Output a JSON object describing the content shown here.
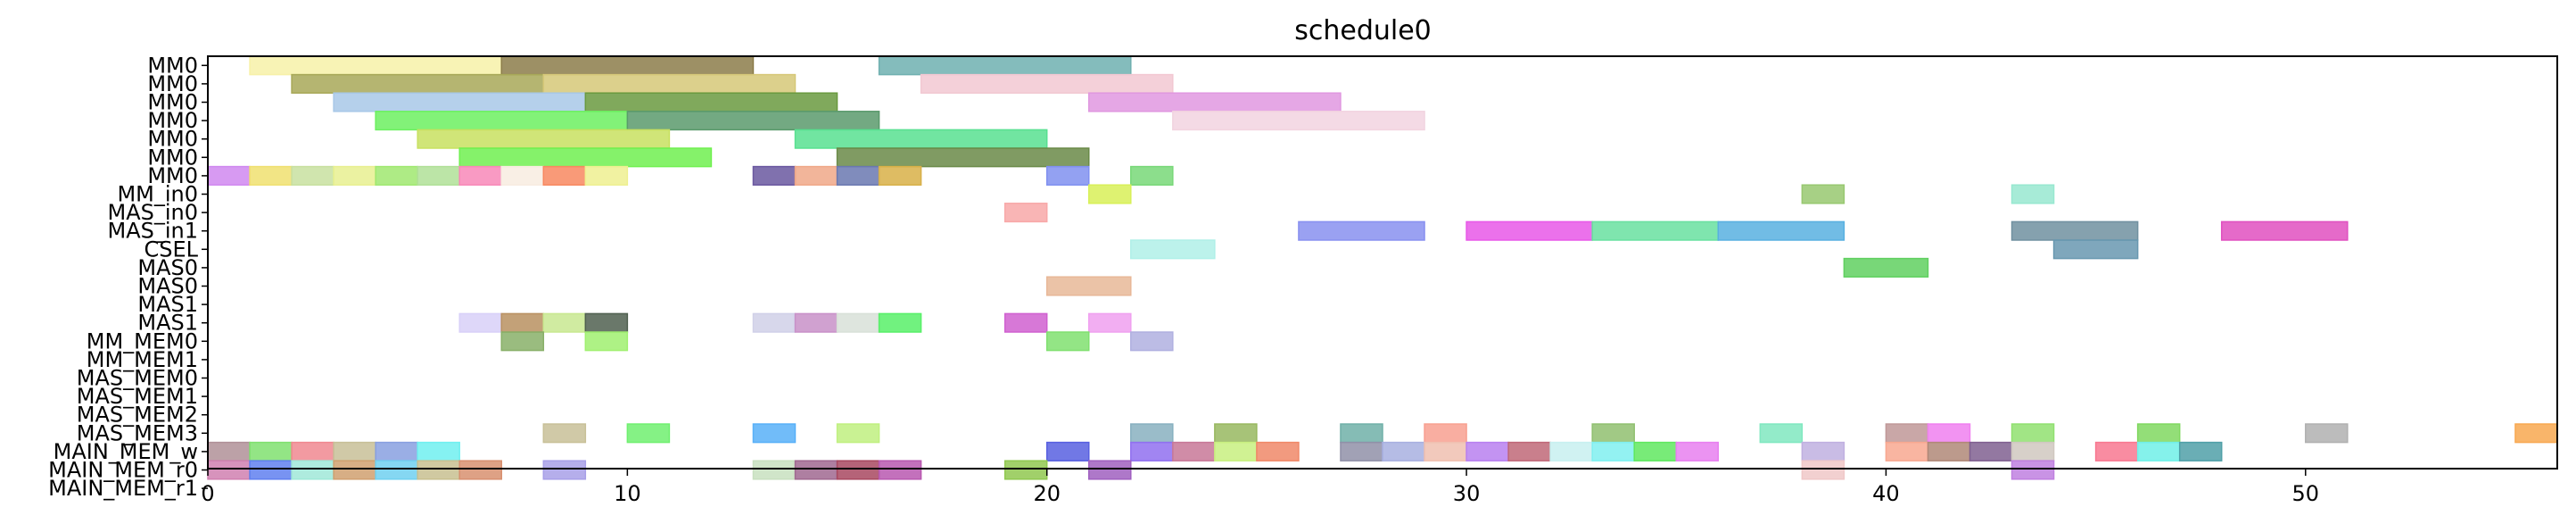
{
  "chart_data": {
    "type": "gantt",
    "title": "schedule0",
    "xlim": [
      0,
      56
    ],
    "x_ticks": [
      0,
      10,
      20,
      30,
      40,
      50
    ],
    "rows": [
      "MM0",
      "MM0",
      "MM0",
      "MM0",
      "MM0",
      "MM0",
      "MM0",
      "MM_in0",
      "MAS_in0",
      "MAS_in1",
      "CSEL",
      "MAS0",
      "MAS0",
      "MAS1",
      "MAS1",
      "MM_MEM0",
      "MM_MEM1",
      "MAS_MEM0",
      "MAS_MEM1",
      "MAS_MEM2",
      "MAS_MEM3",
      "MAIN_MEM_w",
      "MAIN_MEM_r0",
      "MAIN_MEM_r1"
    ],
    "bars": [
      {
        "row": 0,
        "start": 1,
        "end": 7,
        "color": "#f7f1a8"
      },
      {
        "row": 0,
        "start": 7,
        "end": 13,
        "color": "#8c7d4a"
      },
      {
        "row": 0,
        "start": 16,
        "end": 22,
        "color": "#6fb0b0"
      },
      {
        "row": 1,
        "start": 2,
        "end": 8,
        "color": "#a8a858"
      },
      {
        "row": 1,
        "start": 8,
        "end": 14,
        "color": "#d6c878"
      },
      {
        "row": 1,
        "start": 17,
        "end": 23,
        "color": "#f2c8d2"
      },
      {
        "row": 2,
        "start": 3,
        "end": 9,
        "color": "#a8c8e8"
      },
      {
        "row": 2,
        "start": 9,
        "end": 15,
        "color": "#6a9a40"
      },
      {
        "row": 2,
        "start": 21,
        "end": 27,
        "color": "#e098e0"
      },
      {
        "row": 3,
        "start": 4,
        "end": 10,
        "color": "#6cf060"
      },
      {
        "row": 3,
        "start": 10,
        "end": 16,
        "color": "#5a9a6c"
      },
      {
        "row": 3,
        "start": 23,
        "end": 29,
        "color": "#f2d4e0"
      },
      {
        "row": 4,
        "start": 5,
        "end": 11,
        "color": "#c8e060"
      },
      {
        "row": 4,
        "start": 14,
        "end": 20,
        "color": "#58e090"
      },
      {
        "row": 5,
        "start": 6,
        "end": 12,
        "color": "#70f050"
      },
      {
        "row": 5,
        "start": 15,
        "end": 21,
        "color": "#6a8a48"
      },
      {
        "row": 6,
        "start": 0,
        "end": 1,
        "color": "#d088f0"
      },
      {
        "row": 6,
        "start": 1,
        "end": 2,
        "color": "#f0e070"
      },
      {
        "row": 6,
        "start": 2,
        "end": 3,
        "color": "#c8e0a0"
      },
      {
        "row": 6,
        "start": 3,
        "end": 4,
        "color": "#e8f090"
      },
      {
        "row": 6,
        "start": 4,
        "end": 5,
        "color": "#a0e870"
      },
      {
        "row": 6,
        "start": 5,
        "end": 6,
        "color": "#b0e098"
      },
      {
        "row": 6,
        "start": 6,
        "end": 7,
        "color": "#f888b8"
      },
      {
        "row": 6,
        "start": 7,
        "end": 8,
        "color": "#f8ece0"
      },
      {
        "row": 6,
        "start": 8,
        "end": 9,
        "color": "#f88860"
      },
      {
        "row": 6,
        "start": 9,
        "end": 10,
        "color": "#eef090"
      },
      {
        "row": 6,
        "start": 13,
        "end": 14,
        "color": "#6a58a0"
      },
      {
        "row": 6,
        "start": 14,
        "end": 15,
        "color": "#f0a888"
      },
      {
        "row": 6,
        "start": 15,
        "end": 16,
        "color": "#6a78b0"
      },
      {
        "row": 6,
        "start": 16,
        "end": 17,
        "color": "#d8b048"
      },
      {
        "row": 6,
        "start": 20,
        "end": 21,
        "color": "#8090f0"
      },
      {
        "row": 6,
        "start": 22,
        "end": 23,
        "color": "#78d878"
      },
      {
        "row": 7,
        "start": 21,
        "end": 22,
        "color": "#d8f058"
      },
      {
        "row": 7,
        "start": 38,
        "end": 39,
        "color": "#98c870"
      },
      {
        "row": 7,
        "start": 43,
        "end": 44,
        "color": "#98e8d0"
      },
      {
        "row": 8,
        "start": 19,
        "end": 20,
        "color": "#f8a8a8"
      },
      {
        "row": 9,
        "start": 26,
        "end": 29,
        "color": "#8890f0"
      },
      {
        "row": 9,
        "start": 30,
        "end": 33,
        "color": "#e858e8"
      },
      {
        "row": 9,
        "start": 33,
        "end": 36,
        "color": "#68e0a0"
      },
      {
        "row": 9,
        "start": 36,
        "end": 39,
        "color": "#58b0e0"
      },
      {
        "row": 9,
        "start": 43,
        "end": 46,
        "color": "#7090a0"
      },
      {
        "row": 9,
        "start": 48,
        "end": 51,
        "color": "#e050c0"
      },
      {
        "row": 10,
        "start": 22,
        "end": 24,
        "color": "#b0f0e8"
      },
      {
        "row": 10,
        "start": 44,
        "end": 46,
        "color": "#6898b0"
      },
      {
        "row": 11,
        "start": 39,
        "end": 41,
        "color": "#60d060"
      },
      {
        "row": 12,
        "start": 20,
        "end": 22,
        "color": "#e8b898"
      },
      {
        "row": 14,
        "start": 6,
        "end": 7,
        "color": "#d8d0f8"
      },
      {
        "row": 14,
        "start": 7,
        "end": 8,
        "color": "#b89060"
      },
      {
        "row": 14,
        "start": 8,
        "end": 9,
        "color": "#c8e890"
      },
      {
        "row": 14,
        "start": 9,
        "end": 10,
        "color": "#506050"
      },
      {
        "row": 14,
        "start": 13,
        "end": 14,
        "color": "#d0d0e8"
      },
      {
        "row": 14,
        "start": 14,
        "end": 15,
        "color": "#c890c8"
      },
      {
        "row": 14,
        "start": 15,
        "end": 16,
        "color": "#d8e0d8"
      },
      {
        "row": 14,
        "start": 16,
        "end": 17,
        "color": "#58f068"
      },
      {
        "row": 14,
        "start": 19,
        "end": 20,
        "color": "#d060d0"
      },
      {
        "row": 14,
        "start": 21,
        "end": 22,
        "color": "#f0a0f0"
      },
      {
        "row": 15,
        "start": 7,
        "end": 8,
        "color": "#88b068"
      },
      {
        "row": 15,
        "start": 9,
        "end": 10,
        "color": "#a0f070"
      },
      {
        "row": 15,
        "start": 20,
        "end": 21,
        "color": "#80e070"
      },
      {
        "row": 15,
        "start": 22,
        "end": 23,
        "color": "#b0b0e0"
      },
      {
        "row": 20,
        "start": 8,
        "end": 9,
        "color": "#c8c098"
      },
      {
        "row": 20,
        "start": 10,
        "end": 11,
        "color": "#70f070"
      },
      {
        "row": 20,
        "start": 13,
        "end": 14,
        "color": "#58b0f8"
      },
      {
        "row": 20,
        "start": 15,
        "end": 16,
        "color": "#c0f080"
      },
      {
        "row": 20,
        "start": 22,
        "end": 23,
        "color": "#88b0c0"
      },
      {
        "row": 20,
        "start": 24,
        "end": 25,
        "color": "#98b860"
      },
      {
        "row": 20,
        "start": 27,
        "end": 28,
        "color": "#70b0a8"
      },
      {
        "row": 20,
        "start": 29,
        "end": 30,
        "color": "#f8a090"
      },
      {
        "row": 20,
        "start": 33,
        "end": 34,
        "color": "#90c070"
      },
      {
        "row": 20,
        "start": 37,
        "end": 38,
        "color": "#80e8c0"
      },
      {
        "row": 20,
        "start": 40,
        "end": 41,
        "color": "#c09898"
      },
      {
        "row": 20,
        "start": 41,
        "end": 42,
        "color": "#f080f0"
      },
      {
        "row": 20,
        "start": 43,
        "end": 44,
        "color": "#90e070"
      },
      {
        "row": 20,
        "start": 46,
        "end": 47,
        "color": "#80d860"
      },
      {
        "row": 20,
        "start": 50,
        "end": 51,
        "color": "#b0b0b0"
      },
      {
        "row": 20,
        "start": 55,
        "end": 56,
        "color": "#f8a850"
      },
      {
        "row": 21,
        "start": 0,
        "end": 1,
        "color": "#b09098"
      },
      {
        "row": 21,
        "start": 1,
        "end": 2,
        "color": "#80e070"
      },
      {
        "row": 21,
        "start": 2,
        "end": 3,
        "color": "#f08890"
      },
      {
        "row": 21,
        "start": 3,
        "end": 4,
        "color": "#c8c098"
      },
      {
        "row": 21,
        "start": 4,
        "end": 5,
        "color": "#88a0e0"
      },
      {
        "row": 21,
        "start": 5,
        "end": 6,
        "color": "#70f0f0"
      },
      {
        "row": 21,
        "start": 20,
        "end": 21,
        "color": "#5860e0"
      },
      {
        "row": 21,
        "start": 22,
        "end": 23,
        "color": "#9070f0"
      },
      {
        "row": 21,
        "start": 23,
        "end": 24,
        "color": "#c87898"
      },
      {
        "row": 21,
        "start": 24,
        "end": 25,
        "color": "#c8f080"
      },
      {
        "row": 21,
        "start": 25,
        "end": 26,
        "color": "#f08868"
      },
      {
        "row": 21,
        "start": 27,
        "end": 28,
        "color": "#9090a8"
      },
      {
        "row": 21,
        "start": 28,
        "end": 29,
        "color": "#a8b0e0"
      },
      {
        "row": 21,
        "start": 29,
        "end": 30,
        "color": "#f0c0b0"
      },
      {
        "row": 21,
        "start": 30,
        "end": 31,
        "color": "#b880f0"
      },
      {
        "row": 21,
        "start": 31,
        "end": 32,
        "color": "#c06878"
      },
      {
        "row": 21,
        "start": 32,
        "end": 33,
        "color": "#c8f0f0"
      },
      {
        "row": 21,
        "start": 33,
        "end": 34,
        "color": "#80f0f0"
      },
      {
        "row": 21,
        "start": 34,
        "end": 35,
        "color": "#60e860"
      },
      {
        "row": 21,
        "start": 35,
        "end": 36,
        "color": "#e880f0"
      },
      {
        "row": 21,
        "start": 38,
        "end": 39,
        "color": "#c0b0e0"
      },
      {
        "row": 21,
        "start": 40,
        "end": 41,
        "color": "#f8a890"
      },
      {
        "row": 21,
        "start": 41,
        "end": 42,
        "color": "#b08878"
      },
      {
        "row": 21,
        "start": 42,
        "end": 43,
        "color": "#806090"
      },
      {
        "row": 21,
        "start": 43,
        "end": 44,
        "color": "#d0c8c0"
      },
      {
        "row": 21,
        "start": 45,
        "end": 46,
        "color": "#f87890"
      },
      {
        "row": 21,
        "start": 46,
        "end": 47,
        "color": "#70f0e8"
      },
      {
        "row": 21,
        "start": 47,
        "end": 48,
        "color": "#50a0a8"
      },
      {
        "row": 22,
        "start": 0,
        "end": 1,
        "color": "#d080b0"
      },
      {
        "row": 22,
        "start": 1,
        "end": 2,
        "color": "#6080f0"
      },
      {
        "row": 22,
        "start": 2,
        "end": 3,
        "color": "#a0e8d8"
      },
      {
        "row": 22,
        "start": 3,
        "end": 4,
        "color": "#d0a070"
      },
      {
        "row": 22,
        "start": 4,
        "end": 5,
        "color": "#70d0f0"
      },
      {
        "row": 22,
        "start": 5,
        "end": 6,
        "color": "#c8c090"
      },
      {
        "row": 22,
        "start": 6,
        "end": 7,
        "color": "#d89070"
      },
      {
        "row": 22,
        "start": 8,
        "end": 9,
        "color": "#a8a0e8"
      },
      {
        "row": 22,
        "start": 13,
        "end": 14,
        "color": "#c8e0c0"
      },
      {
        "row": 22,
        "start": 14,
        "end": 15,
        "color": "#a06890"
      },
      {
        "row": 22,
        "start": 15,
        "end": 16,
        "color": "#a84860"
      },
      {
        "row": 22,
        "start": 16,
        "end": 17,
        "color": "#b858b0"
      },
      {
        "row": 22,
        "start": 19,
        "end": 20,
        "color": "#90c850"
      },
      {
        "row": 22,
        "start": 21,
        "end": 22,
        "color": "#a060c0"
      },
      {
        "row": 22,
        "start": 38,
        "end": 39,
        "color": "#f0c8c8"
      },
      {
        "row": 22,
        "start": 43,
        "end": 44,
        "color": "#c080e0"
      }
    ]
  }
}
